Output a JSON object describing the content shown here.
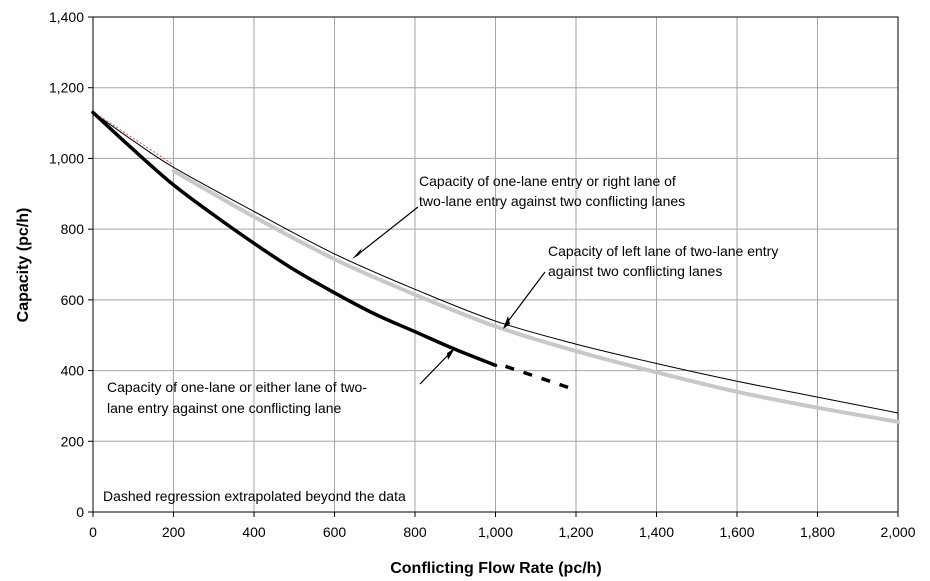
{
  "chart_data": {
    "type": "line",
    "xlabel": "Conflicting Flow Rate (pc/h)",
    "ylabel": "Capacity (pc/h)",
    "xlim": [
      0,
      2000
    ],
    "ylim": [
      0,
      1400
    ],
    "x_ticks": [
      0,
      200,
      400,
      600,
      800,
      1000,
      1200,
      1400,
      1600,
      1800,
      2000
    ],
    "y_ticks": [
      0,
      200,
      400,
      600,
      800,
      1000,
      1200,
      1400
    ],
    "x_tick_labels": [
      "0",
      "200",
      "400",
      "600",
      "800",
      "1,000",
      "1,200",
      "1,400",
      "1,600",
      "1,800",
      "2,000"
    ],
    "y_tick_labels": [
      "0",
      "200",
      "400",
      "600",
      "800",
      "1,000",
      "1,200",
      "1,400"
    ],
    "grid": true,
    "series": [
      {
        "color": "#000000",
        "style": "thin",
        "x": [
          0,
          100,
          200,
          400,
          600,
          800,
          1000,
          1200,
          1400,
          1600,
          1800,
          2000
        ],
        "y": [
          1130,
          1050,
          975,
          850,
          730,
          630,
          540,
          475,
          420,
          370,
          325,
          280
        ]
      },
      {
        "color": "#c8c8c8",
        "style": "thick",
        "x": [
          200,
          400,
          600,
          800,
          1000,
          1200,
          1400,
          1600,
          1800,
          2000
        ],
        "y": [
          965,
          835,
          715,
          615,
          525,
          455,
          395,
          340,
          295,
          255
        ]
      },
      {
        "color": "#000000",
        "style": "thick",
        "x": [
          0,
          100,
          200,
          300,
          400,
          500,
          600,
          700,
          800,
          900,
          1000
        ],
        "y": [
          1130,
          1025,
          925,
          840,
          760,
          685,
          620,
          560,
          510,
          460,
          415
        ],
        "extrapolated_x": [
          1000,
          1200
        ],
        "extrapolated_y": [
          415,
          345
        ]
      }
    ],
    "annotations": [
      {
        "lines": [
          "Capacity of one-lane entry or right lane of",
          "two-lane entry against two conflicting lanes"
        ]
      },
      {
        "lines": [
          "Capacity of left lane of two-lane entry",
          "against two conflicting lanes"
        ]
      },
      {
        "lines": [
          "Capacity of one-lane or either lane of two-",
          "lane entry against one conflicting lane"
        ]
      },
      {
        "lines": [
          "Dashed regression extrapolated beyond the data"
        ]
      }
    ]
  }
}
